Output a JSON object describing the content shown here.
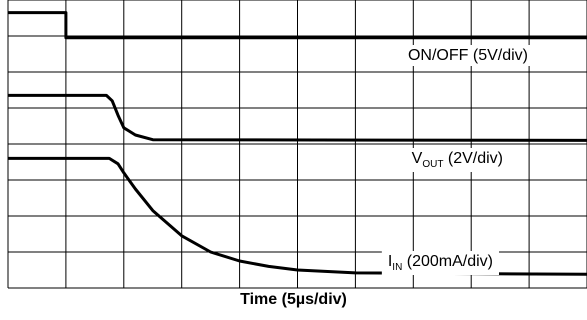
{
  "chart_data": {
    "type": "line",
    "xlabel": "Time (5µs/div)",
    "x_divisions": 10,
    "y_divisions": 8,
    "grid": true,
    "series": [
      {
        "name": "ON/OFF (5V/div)",
        "label_main": "ON/OFF (5V/div)",
        "x": [
          0,
          1.0,
          1.0,
          10
        ],
        "y": [
          7.65,
          7.65,
          6.95,
          6.95
        ]
      },
      {
        "name": "VOUT (2V/div)",
        "label_main": "V",
        "label_sub": "OUT",
        "label_tail": " (2V/div)",
        "x": [
          0,
          1.7,
          1.8,
          1.9,
          2.0,
          2.2,
          2.5,
          10
        ],
        "y": [
          5.35,
          5.35,
          5.2,
          4.8,
          4.45,
          4.25,
          4.12,
          4.1
        ]
      },
      {
        "name": "IIN (200mA/div)",
        "label_main": "I",
        "label_sub": "IN",
        "label_tail": " (200mA/div)",
        "x": [
          0,
          1.75,
          1.9,
          2.0,
          2.2,
          2.5,
          3.0,
          3.5,
          4.0,
          4.5,
          5.0,
          6.0,
          8.0,
          10
        ],
        "y": [
          3.6,
          3.6,
          3.45,
          3.2,
          2.75,
          2.15,
          1.45,
          1.0,
          0.75,
          0.6,
          0.5,
          0.42,
          0.4,
          0.38
        ]
      }
    ]
  }
}
